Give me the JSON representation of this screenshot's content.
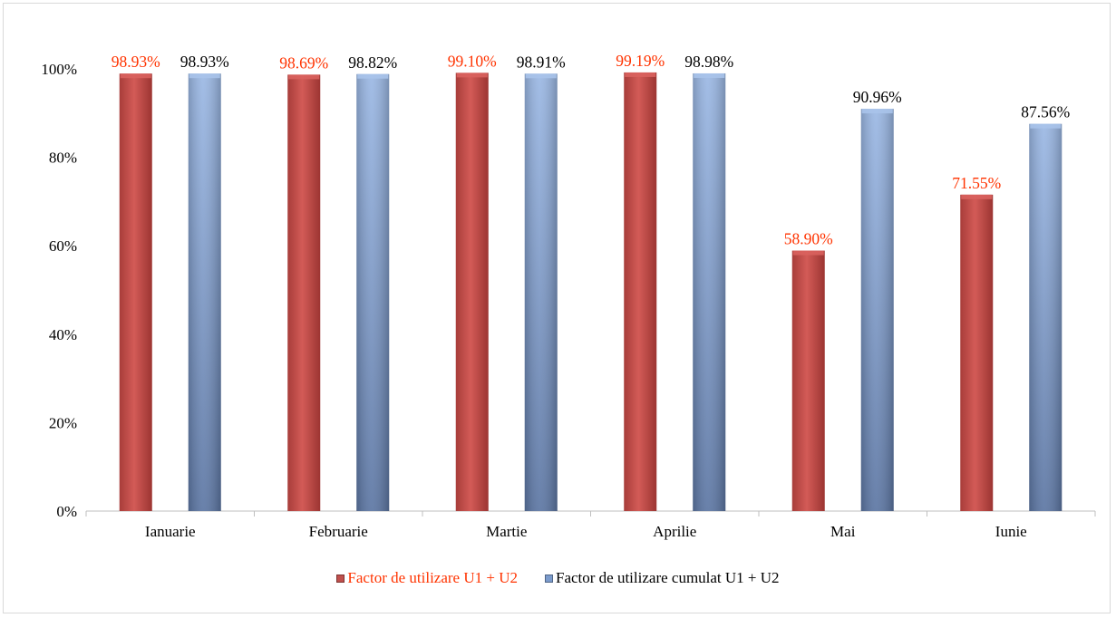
{
  "chart_data": {
    "type": "bar",
    "title": "",
    "xlabel": "",
    "ylabel": "",
    "categories": [
      "Ianuarie",
      "Februarie",
      "Martie",
      "Aprilie",
      "Mai",
      "Iunie"
    ],
    "series": [
      {
        "name": "Factor de utilizare U1 + U2",
        "color": "#c0504d",
        "label_color": "#ff3300",
        "values": [
          98.93,
          98.69,
          99.1,
          99.19,
          58.9,
          71.55
        ],
        "labels": [
          "98.93%",
          "98.69%",
          "99.10%",
          "99.19%",
          "58.90%",
          "71.55%"
        ]
      },
      {
        "name": "Factor de utilizare cumulat U1 + U2",
        "color": "#7b9bcc",
        "label_color": "#000000",
        "values": [
          98.93,
          98.82,
          98.91,
          98.98,
          90.96,
          87.56
        ],
        "labels": [
          "98.93%",
          "98.82%",
          "98.91%",
          "98.98%",
          "90.96%",
          "87.56%"
        ]
      }
    ],
    "ylim": [
      0,
      100
    ],
    "yticks": [
      "0%",
      "20%",
      "40%",
      "60%",
      "80%",
      "100%"
    ],
    "grid": false,
    "legend_position": "bottom"
  }
}
